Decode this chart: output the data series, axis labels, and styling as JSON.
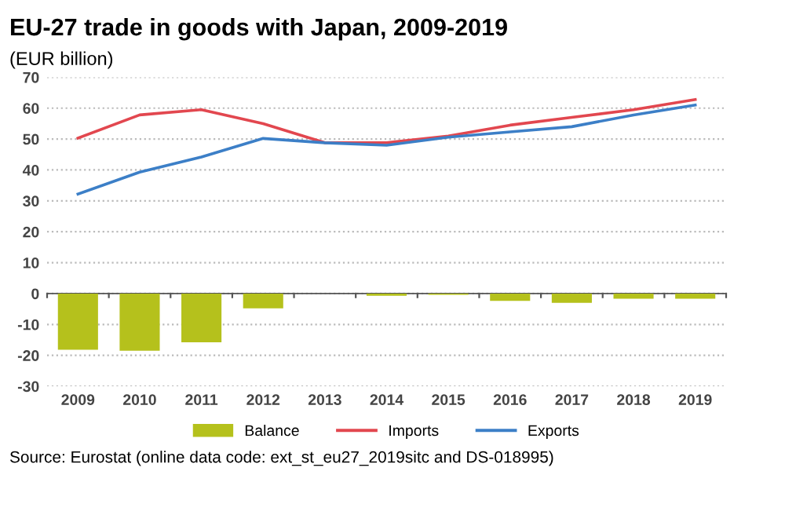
{
  "chart_data": {
    "type": "bar",
    "title": "EU-27 trade in goods with Japan, 2009-2019",
    "subtitle": "(EUR billion)",
    "categories": [
      "2009",
      "2010",
      "2011",
      "2012",
      "2013",
      "2014",
      "2015",
      "2016",
      "2017",
      "2018",
      "2019"
    ],
    "series": [
      {
        "name": "Balance",
        "color": "#b5c11c",
        "values": [
          -18.2,
          -18.5,
          -15.8,
          -4.8,
          0,
          -0.7,
          -0.4,
          -2.4,
          -3.0,
          -1.7,
          -1.7
        ]
      },
      {
        "name": "Imports",
        "type": "line",
        "color": "#e2474f",
        "values": [
          50.3,
          57.8,
          59.5,
          55.0,
          48.8,
          48.8,
          51.0,
          54.5,
          57.0,
          59.5,
          62.8
        ]
      },
      {
        "name": "Exports",
        "type": "line",
        "color": "#3c7fc7",
        "values": [
          32.2,
          39.3,
          44.2,
          50.2,
          48.8,
          48.0,
          50.6,
          52.3,
          54.0,
          57.8,
          61.0
        ]
      }
    ],
    "ylim": [
      -30,
      70
    ],
    "yticks": [
      -30,
      -20,
      -10,
      0,
      10,
      20,
      30,
      40,
      50,
      60,
      70
    ],
    "grid": "y",
    "legend": "bottom",
    "marker": "none",
    "line_style": "solid",
    "annotations": [
      "Source: Eurostat (online data code: ext_st_eu27_2019sitc and DS-018995)"
    ]
  }
}
